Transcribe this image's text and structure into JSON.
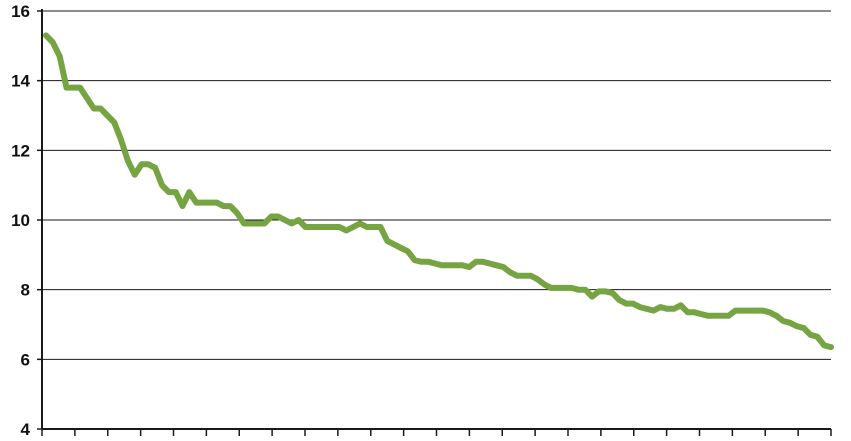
{
  "chart_data": {
    "type": "line",
    "title": "",
    "xlabel": "",
    "ylabel": "",
    "ylim": [
      4,
      16
    ],
    "yticks": [
      4,
      6,
      8,
      10,
      12,
      14,
      16
    ],
    "ytick_labels": [
      "4",
      "6",
      "8",
      "10",
      "12",
      "14",
      "16"
    ],
    "grid": true,
    "legend": "none",
    "x_tick_count": 24,
    "series": [
      {
        "color": "#76a443",
        "x": [
          0,
          1,
          2,
          3,
          4,
          5,
          6,
          7,
          8,
          9,
          10,
          11,
          12,
          13,
          14,
          15,
          16,
          17,
          18,
          19,
          20,
          21,
          22,
          23,
          24,
          25,
          26,
          27,
          28,
          29,
          30,
          31,
          32,
          33,
          34,
          35,
          36,
          37,
          38,
          39,
          40,
          41,
          42,
          43,
          44,
          45,
          46,
          47,
          48,
          49,
          50,
          51,
          52,
          53,
          54,
          55,
          56,
          57,
          58,
          59,
          60,
          61,
          62,
          63,
          64,
          65,
          66,
          67,
          68,
          69,
          70,
          71,
          72,
          73,
          74,
          75,
          76,
          77,
          78,
          79,
          80,
          81,
          82,
          83,
          84,
          85,
          86,
          87,
          88,
          89,
          90,
          91,
          92,
          93,
          94,
          95,
          96,
          97,
          98,
          99,
          100,
          101,
          102,
          103,
          104,
          105,
          106,
          107,
          108,
          109,
          110,
          111,
          112,
          113,
          114,
          115
        ],
        "values": [
          15.3,
          15.1,
          14.7,
          13.8,
          13.8,
          13.8,
          13.5,
          13.2,
          13.2,
          13.0,
          12.8,
          12.3,
          11.7,
          11.3,
          11.6,
          11.6,
          11.5,
          11.0,
          10.8,
          10.8,
          10.4,
          10.8,
          10.5,
          10.5,
          10.5,
          10.5,
          10.4,
          10.4,
          10.2,
          9.9,
          9.9,
          9.9,
          9.9,
          10.1,
          10.1,
          10.0,
          9.9,
          10.0,
          9.8,
          9.8,
          9.8,
          9.8,
          9.8,
          9.8,
          9.7,
          9.8,
          9.9,
          9.8,
          9.8,
          9.8,
          9.4,
          9.3,
          9.2,
          9.1,
          8.85,
          8.8,
          8.8,
          8.75,
          8.7,
          8.7,
          8.7,
          8.7,
          8.65,
          8.8,
          8.8,
          8.75,
          8.7,
          8.65,
          8.5,
          8.4,
          8.4,
          8.4,
          8.3,
          8.15,
          8.05,
          8.05,
          8.05,
          8.05,
          8.0,
          8.0,
          7.8,
          7.95,
          7.95,
          7.9,
          7.7,
          7.6,
          7.6,
          7.5,
          7.45,
          7.4,
          7.5,
          7.45,
          7.45,
          7.55,
          7.35,
          7.35,
          7.3,
          7.25,
          7.25,
          7.25,
          7.25,
          7.4,
          7.4,
          7.4,
          7.4,
          7.4,
          7.35,
          7.25,
          7.1,
          7.05,
          6.95,
          6.9,
          6.7,
          6.65,
          6.4,
          6.35
        ]
      }
    ]
  }
}
